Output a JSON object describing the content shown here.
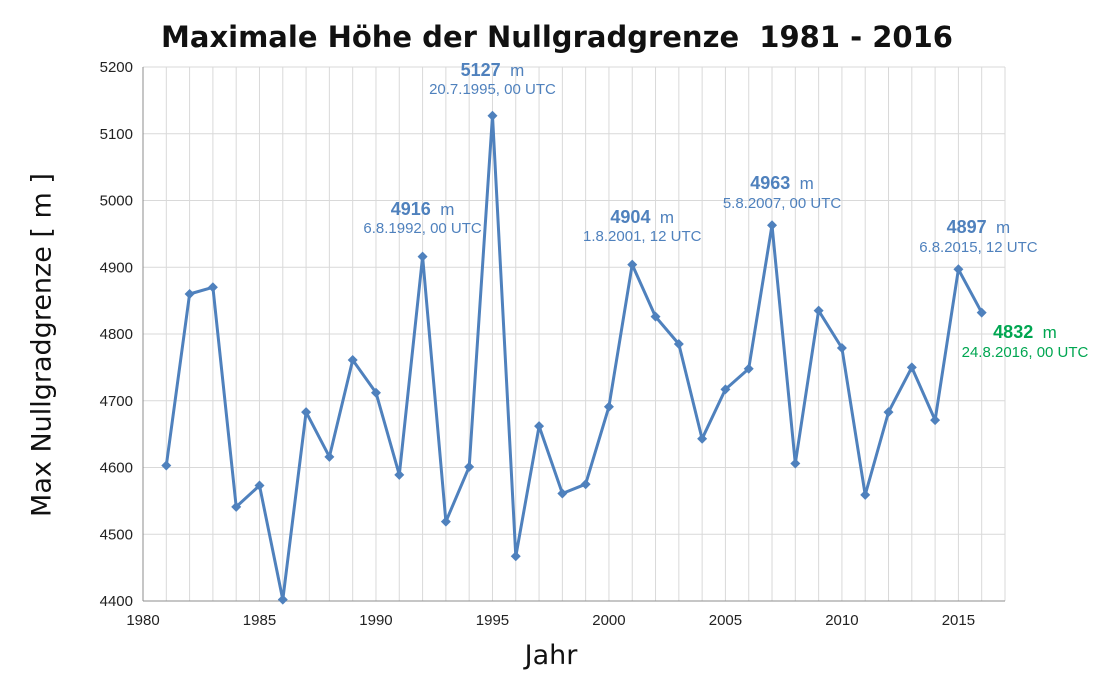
{
  "chart_data": {
    "type": "line",
    "title": "Maximale Höhe der Nullgradgrenze  1981 - 2016",
    "xlabel": "Jahr",
    "ylabel": "Max Nullgradgrenze [ m ]",
    "xlim": [
      1980,
      2017
    ],
    "ylim": [
      4400,
      5200
    ],
    "xticks": [
      1980,
      1985,
      1990,
      1995,
      2000,
      2005,
      2010,
      2015
    ],
    "yticks": [
      4400,
      4500,
      4600,
      4700,
      4800,
      4900,
      5000,
      5100,
      5200
    ],
    "grid": true,
    "line_color": "#4f81bd",
    "x": [
      1981,
      1982,
      1983,
      1984,
      1985,
      1986,
      1987,
      1988,
      1989,
      1990,
      1991,
      1992,
      1993,
      1994,
      1995,
      1996,
      1997,
      1998,
      1999,
      2000,
      2001,
      2002,
      2003,
      2004,
      2005,
      2006,
      2007,
      2008,
      2009,
      2010,
      2011,
      2012,
      2013,
      2014,
      2015,
      2016
    ],
    "y": [
      4603,
      4860,
      4870,
      4541,
      4573,
      4402,
      4683,
      4616,
      4761,
      4712,
      4589,
      4916,
      4519,
      4601,
      5127,
      4467,
      4662,
      4561,
      4575,
      4691,
      4904,
      4826,
      4785,
      4643,
      4717,
      4748,
      4963,
      4606,
      4835,
      4779,
      4559,
      4683,
      4750,
      4671,
      4897,
      4832
    ],
    "annotations": [
      {
        "x": 1992,
        "value": "4916",
        "unit": "m",
        "date": "6.8.1992, 00 UTC",
        "color": "#4f81bd"
      },
      {
        "x": 1995,
        "value": "5127",
        "unit": "m",
        "date": "20.7.1995, 00 UTC",
        "color": "#4f81bd"
      },
      {
        "x": 2001,
        "value": "4904",
        "unit": "m",
        "date": "1.8.2001, 12 UTC",
        "color": "#4f81bd"
      },
      {
        "x": 2007,
        "value": "4963",
        "unit": "m",
        "date": "5.8.2007, 00 UTC",
        "color": "#4f81bd"
      },
      {
        "x": 2015,
        "value": "4897",
        "unit": "m",
        "date": "6.8.2015, 12 UTC",
        "color": "#4f81bd"
      },
      {
        "x": 2016,
        "value": "4832",
        "unit": "m",
        "date": "24.8.2016, 00 UTC",
        "color": "#00a651"
      }
    ]
  }
}
